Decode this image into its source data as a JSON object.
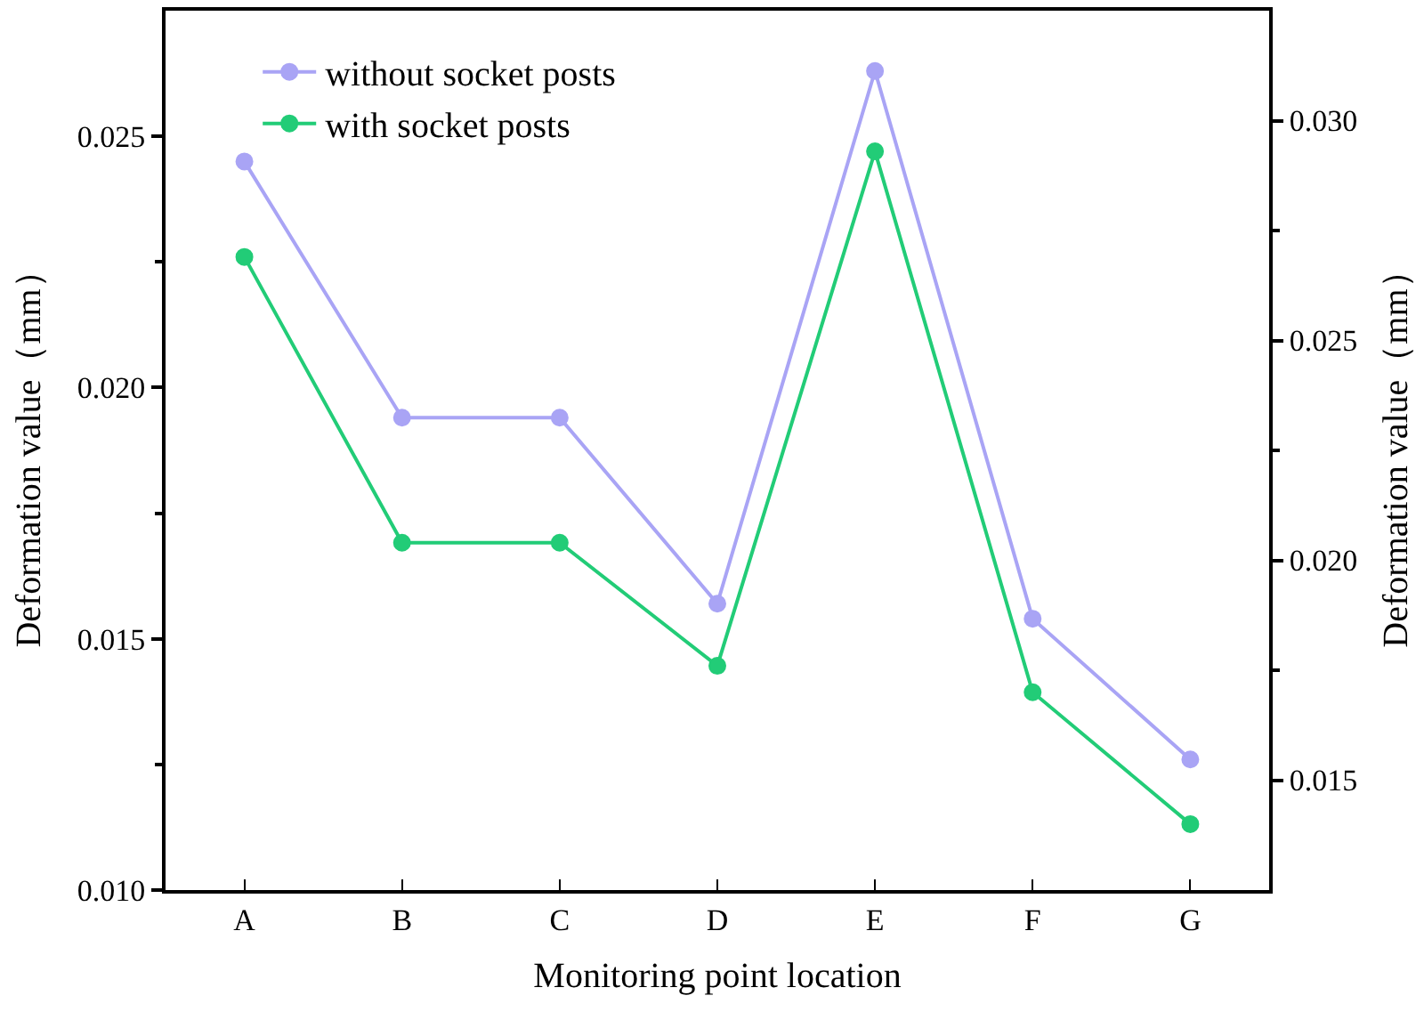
{
  "chart_data": {
    "type": "line",
    "xlabel": "Monitoring point location",
    "ylabel": "Deformation value（mm）",
    "y2label": "Deformation value（mm）",
    "categories": [
      "A",
      "B",
      "C",
      "D",
      "E",
      "F",
      "G"
    ],
    "series": [
      {
        "name": "without socket posts",
        "color": "#a9a4f5",
        "values": [
          0.0245,
          0.0194,
          0.0194,
          0.0157,
          0.0263,
          0.0154,
          0.0126
        ]
      },
      {
        "name": "with socket posts",
        "color": "#22cc77",
        "axis": "y2",
        "values": [
          0.0269,
          0.0204,
          0.0204,
          0.0176,
          0.0293,
          0.017,
          0.014
        ]
      }
    ],
    "ylim": [
      0.01,
      0.0275
    ],
    "yticks": [
      {
        "value": 0.01,
        "label": "0.010"
      },
      {
        "value": 0.0125,
        "label": null
      },
      0.015,
      {
        "value": 0.0175,
        "label": null
      },
      {
        "value": 0.02,
        "label": "0.020"
      },
      {
        "value": 0.0225,
        "label": null
      },
      0.025
    ],
    "y2lim": [
      0.0125,
      0.0325
    ],
    "y2ticks": [
      0.015,
      {
        "value": 0.0175,
        "label": null
      },
      {
        "value": 0.02,
        "label": "0.020"
      },
      {
        "value": 0.0225,
        "label": null
      },
      0.025,
      {
        "value": 0.0275,
        "label": null
      },
      {
        "value": 0.03,
        "label": "0.030"
      }
    ],
    "legend": "top left",
    "grid": false,
    "marker": "circle",
    "line_style": "solid"
  }
}
